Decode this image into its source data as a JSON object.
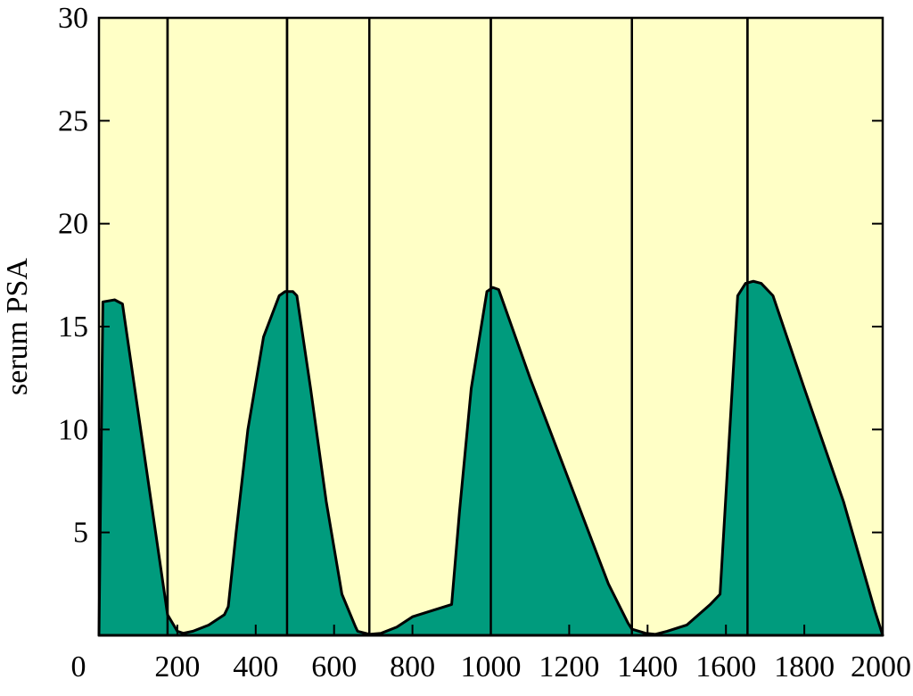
{
  "chart_data": {
    "type": "area",
    "title": "",
    "xlabel": "",
    "ylabel": "serum PSA",
    "xlim": [
      0,
      2000
    ],
    "ylim": [
      0,
      30
    ],
    "x_ticks": [
      0,
      200,
      400,
      600,
      800,
      1000,
      1200,
      1400,
      1600,
      1800,
      2000
    ],
    "y_ticks": [
      5,
      10,
      15,
      20,
      25,
      30
    ],
    "grid": false,
    "colors": {
      "background": "#ffffc6",
      "fill": "#009b7d",
      "line": "#000000"
    },
    "vertical_lines": [
      175,
      480,
      690,
      1000,
      1360,
      1655
    ],
    "series": [
      {
        "x": [
          0,
          10,
          40,
          60,
          175,
          200,
          215,
          240,
          280,
          320,
          330,
          350,
          380,
          420,
          460,
          475,
          495,
          505,
          540,
          580,
          620,
          655,
          660,
          690,
          720,
          760,
          800,
          850,
          900,
          920,
          950,
          990,
          1005,
          1020,
          1100,
          1200,
          1300,
          1350,
          1360,
          1395,
          1420,
          1450,
          1500,
          1560,
          1585,
          1630,
          1650,
          1670,
          1690,
          1720,
          1800,
          1900,
          1980,
          2000
        ],
        "y": [
          0,
          16.2,
          16.3,
          16.1,
          1,
          0.2,
          0.1,
          0.2,
          0.5,
          1.0,
          1.4,
          5,
          10,
          14.5,
          16.5,
          16.7,
          16.7,
          16.5,
          12,
          6.5,
          2,
          0.4,
          0.2,
          0.05,
          0.1,
          0.4,
          0.9,
          1.2,
          1.5,
          6,
          12,
          16.7,
          16.9,
          16.8,
          12.5,
          7.5,
          2.5,
          0.6,
          0.3,
          0.1,
          0.05,
          0.2,
          0.5,
          1.5,
          2,
          16.5,
          17.1,
          17.2,
          17.1,
          16.5,
          12,
          6.5,
          1.2,
          0
        ]
      }
    ]
  }
}
